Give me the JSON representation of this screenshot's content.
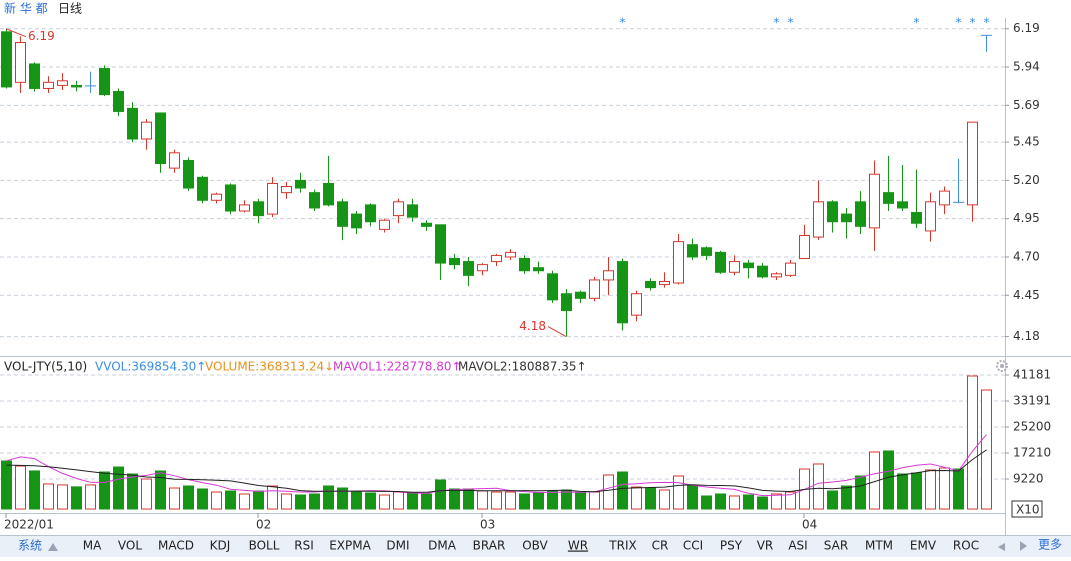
{
  "security": "新 华 都",
  "period": "日线",
  "more": "更多",
  "tabs": [
    "系统",
    "MA",
    "VOL",
    "MACD",
    "KDJ",
    "BOLL",
    "RSI",
    "EXPMA",
    "DMI",
    "DMA",
    "BRAR",
    "OBV",
    "WR",
    "TRIX",
    "CR",
    "CCI",
    "PSY",
    "VR",
    "ASI",
    "SAR",
    "MTM",
    "EMV",
    "ROC"
  ],
  "chart_data": [
    {
      "type": "candlestick",
      "open": [
        6.17,
        5.84,
        5.96,
        5.8,
        5.82,
        5.82,
        5.82,
        5.93,
        5.78,
        5.67,
        5.47,
        5.64,
        5.28,
        5.33,
        5.22,
        5.07,
        5.17,
        5.0,
        5.06,
        4.98,
        5.12,
        5.2,
        5.12,
        5.18,
        5.06,
        4.98,
        5.04,
        4.88,
        4.97,
        5.04,
        4.92,
        4.91,
        4.69,
        4.67,
        4.61,
        4.67,
        4.7,
        4.69,
        4.63,
        4.59,
        4.46,
        4.47,
        4.43,
        4.55,
        4.67,
        4.32,
        4.54,
        4.52,
        4.53,
        4.78,
        4.76,
        4.73,
        4.6,
        4.66,
        4.64,
        4.57,
        4.58,
        4.69,
        4.83,
        5.06,
        4.98,
        5.06,
        4.89,
        5.12,
        5.06,
        4.99,
        4.87,
        5.04,
        5.06,
        5.04,
        6.15
      ],
      "high": [
        6.19,
        6.14,
        5.97,
        5.88,
        5.9,
        5.85,
        5.91,
        5.95,
        5.8,
        5.71,
        5.6,
        5.64,
        5.4,
        5.35,
        5.23,
        5.12,
        5.18,
        5.07,
        5.08,
        5.22,
        5.19,
        5.25,
        5.14,
        5.36,
        5.08,
        5.0,
        5.05,
        4.95,
        5.08,
        5.08,
        4.94,
        4.91,
        4.72,
        4.7,
        4.66,
        4.72,
        4.75,
        4.71,
        4.67,
        4.61,
        4.49,
        4.48,
        4.57,
        4.7,
        4.69,
        4.48,
        4.56,
        4.6,
        4.85,
        4.82,
        4.77,
        4.74,
        4.71,
        4.68,
        4.66,
        4.6,
        4.68,
        4.91,
        5.2,
        5.07,
        5.02,
        5.13,
        5.33,
        5.36,
        5.3,
        5.27,
        5.12,
        5.16,
        5.34,
        5.58,
        6.15
      ],
      "low": [
        5.8,
        5.77,
        5.78,
        5.77,
        5.79,
        5.78,
        5.77,
        5.75,
        5.62,
        5.45,
        5.4,
        5.25,
        5.25,
        5.13,
        5.05,
        5.05,
        4.98,
        4.99,
        4.92,
        4.96,
        5.08,
        5.12,
        5.0,
        5.03,
        4.81,
        4.85,
        4.9,
        4.86,
        4.92,
        4.93,
        4.87,
        4.55,
        4.62,
        4.51,
        4.58,
        4.64,
        4.68,
        4.59,
        4.59,
        4.4,
        4.18,
        4.4,
        4.41,
        4.45,
        4.22,
        4.28,
        4.48,
        4.5,
        4.52,
        4.68,
        4.68,
        4.59,
        4.58,
        4.56,
        4.56,
        4.55,
        4.57,
        4.69,
        4.81,
        4.86,
        4.82,
        4.85,
        4.74,
        5.0,
        5.0,
        4.89,
        4.8,
        4.98,
        5.05,
        4.93,
        6.04
      ],
      "close": [
        5.81,
        6.1,
        5.8,
        5.84,
        5.85,
        5.81,
        5.82,
        5.76,
        5.65,
        5.47,
        5.58,
        5.31,
        5.38,
        5.15,
        5.07,
        5.11,
        5.0,
        5.04,
        4.97,
        5.18,
        5.16,
        5.15,
        5.02,
        5.04,
        4.9,
        4.89,
        4.93,
        4.94,
        5.06,
        4.96,
        4.9,
        4.66,
        4.65,
        4.58,
        4.65,
        4.71,
        4.73,
        4.61,
        4.61,
        4.42,
        4.35,
        4.43,
        4.55,
        4.61,
        4.27,
        4.46,
        4.5,
        4.54,
        4.8,
        4.7,
        4.71,
        4.6,
        4.67,
        4.63,
        4.57,
        4.59,
        4.66,
        4.84,
        5.06,
        4.93,
        4.93,
        4.9,
        5.24,
        5.05,
        5.02,
        4.92,
        5.06,
        5.13,
        5.06,
        5.58,
        6.15
      ],
      "ylim": [
        4.06,
        6.26
      ],
      "yticks": [
        6.19,
        5.94,
        5.69,
        5.45,
        {
          "value": 5.2,
          "label": "5.20"
        },
        4.95,
        {
          "value": 4.7,
          "label": "4.70"
        },
        4.45,
        4.18
      ],
      "grid": true,
      "up_color": "#d9362b",
      "down_color": "#169416",
      "flat_color": "#3a8ee6",
      "annotations": [
        {
          "label": "6.19",
          "candle": 0
        },
        {
          "label": "4.18",
          "candle": 40
        }
      ],
      "event_marks": [
        {
          "label": "*",
          "candle": 44
        },
        {
          "label": "*",
          "candle": 55
        },
        {
          "label": "*",
          "candle": 56
        },
        {
          "label": "*",
          "candle": 65
        },
        {
          "label": "*",
          "candle": 68
        },
        {
          "label": "*",
          "candle": 69
        },
        {
          "label": "*",
          "candle": 70
        }
      ],
      "xlabels": [
        {
          "label": "2022/01",
          "candle": 0
        },
        {
          "label": "02",
          "candle": 18
        },
        {
          "label": "03",
          "candle": 34
        },
        {
          "label": "04",
          "candle": 57
        }
      ]
    },
    {
      "type": "volume",
      "indicator": "VOL-JTY(5,10)",
      "readouts": [
        {
          "label": "VVOL:369854.30↑",
          "color": "#3a8ee6"
        },
        {
          "label": "VOLUME:368313.24↓",
          "color": "#e8901c"
        },
        {
          "label": "MAVOL1:228778.80↑",
          "color": "#d63ad6"
        },
        {
          "label": "MAVOL2:180887.35↑",
          "color": "#333333"
        }
      ],
      "values": [
        14750,
        13200,
        11700,
        7700,
        7400,
        6800,
        7400,
        11370,
        12900,
        10760,
        9220,
        11680,
        6450,
        7070,
        6150,
        5220,
        5530,
        4610,
        5530,
        7070,
        4610,
        4300,
        4610,
        7070,
        6450,
        5220,
        4920,
        4300,
        5220,
        4920,
        4610,
        8910,
        6150,
        6150,
        5530,
        5220,
        5220,
        4610,
        4920,
        5530,
        5840,
        4920,
        5220,
        10450,
        11370,
        6760,
        6450,
        5840,
        10140,
        7380,
        4000,
        4610,
        4000,
        4300,
        3690,
        4610,
        5220,
        12290,
        13830,
        5530,
        7070,
        10140,
        17520,
        17830,
        10760,
        11060,
        12000,
        12600,
        12290,
        40870,
        36560
      ],
      "series": [
        {
          "name": "MAVOL1",
          "color": "#d63ad6",
          "values": [
            14800,
            16000,
            15500,
            13000,
            10950,
            9360,
            8200,
            8134,
            9174,
            9846,
            10330,
            11186,
            10202,
            9036,
            8114,
            7314,
            6084,
            5716,
            5408,
            5592,
            5470,
            5224,
            5224,
            5532,
            5408,
            5530,
            5654,
            5592,
            5222,
            4916,
            4794,
            5592,
            5962,
            6148,
            6270,
            6392,
            5654,
            5346,
            5100,
            5100,
            5224,
            5164,
            5286,
            6392,
            7560,
            7744,
            8050,
            8174,
            8112,
            7314,
            6762,
            6394,
            6026,
            4858,
            4120,
            4242,
            4364,
            6022,
            7928,
            8296,
            8788,
            9772,
            10818,
            11618,
            12664,
            13462,
            13834,
            12850,
            11742,
            17764,
            22864
          ]
        },
        {
          "name": "MAVOL2",
          "color": "#222222",
          "values": [
            13500,
            13400,
            13300,
            13000,
            12500,
            12000,
            11500,
            11000,
            10700,
            10398,
            9845,
            9693,
            9168,
            9105,
            8980,
            8822,
            8635,
            7959,
            7222,
            6853,
            6392,
            5654,
            5470,
            5470,
            5500,
            5500,
            5439,
            5408,
            5377,
            5162,
            5162,
            5623,
            5777,
            5685,
            5593,
            5593,
            5623,
            5654,
            5624,
            5685,
            5808,
            5409,
            5316,
            5746,
            6330,
            6484,
            6607,
            6730,
            7252,
            7437,
            7253,
            7222,
            7100,
            6485,
            5717,
            5502,
            5379,
            6024,
            6393,
            6208,
            6515,
            7068,
            8420,
            9773,
            10480,
            11125,
            11803,
            11834,
            11680,
            15214,
            18163
          ]
        }
      ],
      "ylim": [
        0,
        46400
      ],
      "yticks": [
        41181,
        33191,
        25200,
        17210,
        9220
      ],
      "unit": "X10",
      "grid": true
    }
  ]
}
